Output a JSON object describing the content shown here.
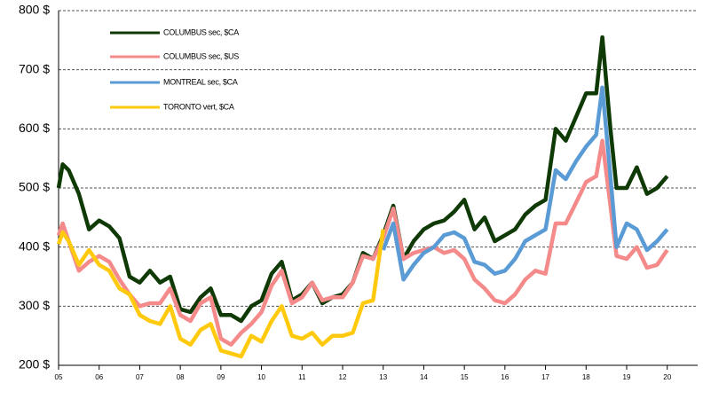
{
  "chart_data": {
    "type": "line",
    "x": [
      5,
      5.1,
      5.25,
      5.5,
      5.75,
      6,
      6.25,
      6.5,
      6.75,
      7,
      7.25,
      7.5,
      7.75,
      8,
      8.25,
      8.5,
      8.75,
      9,
      9.25,
      9.5,
      9.75,
      10,
      10.25,
      10.5,
      10.75,
      11,
      11.25,
      11.5,
      11.75,
      12,
      12.25,
      12.5,
      12.75,
      13,
      13.25,
      13.5,
      13.75,
      14,
      14.25,
      14.5,
      14.75,
      15,
      15.25,
      15.5,
      15.75,
      16,
      16.25,
      16.5,
      16.75,
      17,
      17.25,
      17.5,
      17.75,
      18,
      18.25,
      18.4,
      18.6,
      18.75,
      19,
      19.25,
      19.5,
      19.75,
      20
    ],
    "series": [
      {
        "name": "COLUMBUS sec, $CA",
        "color": "#0f3a06",
        "values": [
          500,
          540,
          530,
          490,
          430,
          445,
          435,
          415,
          350,
          340,
          360,
          340,
          350,
          295,
          290,
          315,
          330,
          285,
          285,
          275,
          300,
          310,
          355,
          375,
          310,
          320,
          340,
          305,
          315,
          320,
          340,
          390,
          380,
          420,
          470,
          380,
          410,
          430,
          440,
          445,
          460,
          480,
          430,
          450,
          410,
          420,
          430,
          455,
          470,
          480,
          600,
          580,
          620,
          660,
          660,
          755,
          600,
          500,
          500,
          535,
          490,
          500,
          520
        ]
      },
      {
        "name": "COLUMBUS sec, $US",
        "color": "#f58a8a",
        "values": [
          420,
          440,
          410,
          360,
          375,
          385,
          375,
          345,
          320,
          300,
          305,
          305,
          330,
          285,
          275,
          305,
          315,
          245,
          235,
          255,
          270,
          290,
          335,
          360,
          305,
          315,
          340,
          310,
          315,
          315,
          340,
          385,
          380,
          415,
          465,
          380,
          390,
          395,
          400,
          390,
          395,
          380,
          345,
          330,
          310,
          305,
          320,
          345,
          360,
          355,
          440,
          440,
          475,
          510,
          520,
          580,
          470,
          385,
          380,
          400,
          365,
          370,
          395
        ]
      },
      {
        "name": "MONTREAL sec, $CA",
        "color": "#5b9bd5",
        "values": [
          null,
          null,
          null,
          null,
          null,
          null,
          null,
          null,
          null,
          null,
          null,
          null,
          null,
          null,
          null,
          null,
          null,
          null,
          null,
          null,
          null,
          null,
          null,
          null,
          null,
          null,
          null,
          null,
          null,
          null,
          null,
          null,
          null,
          395,
          440,
          345,
          370,
          390,
          400,
          420,
          425,
          415,
          375,
          370,
          355,
          360,
          380,
          410,
          420,
          430,
          530,
          515,
          545,
          570,
          590,
          670,
          520,
          400,
          440,
          430,
          395,
          410,
          430
        ]
      },
      {
        "name": "TORONTO vert, $CA",
        "color": "#ffc90e",
        "values": [
          405,
          425,
          410,
          370,
          395,
          370,
          360,
          330,
          320,
          285,
          275,
          270,
          300,
          245,
          235,
          260,
          270,
          225,
          220,
          215,
          250,
          240,
          275,
          300,
          250,
          245,
          255,
          235,
          250,
          250,
          255,
          305,
          310,
          430,
          null,
          null,
          null,
          null,
          null,
          null,
          null,
          null,
          null,
          null,
          null,
          null,
          null,
          null,
          null,
          null,
          null,
          null,
          null,
          null,
          null,
          null,
          null,
          null,
          null,
          null,
          null,
          null,
          null
        ]
      }
    ],
    "xlim": [
      5,
      20.75
    ],
    "xticks": [
      {
        "value": 5,
        "label": "05"
      },
      {
        "value": 6,
        "label": "06"
      },
      {
        "value": 7,
        "label": "07"
      },
      {
        "value": 8,
        "label": "08"
      },
      {
        "value": 9,
        "label": "09"
      },
      10,
      11,
      12,
      13,
      14,
      15,
      16,
      17,
      18,
      19,
      20
    ],
    "ylim": [
      200,
      800
    ],
    "yticks": [
      {
        "value": 200,
        "label": "200 $"
      },
      {
        "value": 300,
        "label": "300 $"
      },
      {
        "value": 400,
        "label": "400 $"
      },
      {
        "value": 500,
        "label": "500 $"
      },
      {
        "value": 600,
        "label": "600 $"
      },
      {
        "value": 700,
        "label": "700 $"
      },
      {
        "value": 800,
        "label": "800 $"
      }
    ],
    "grid": true,
    "legend": "upper left"
  }
}
